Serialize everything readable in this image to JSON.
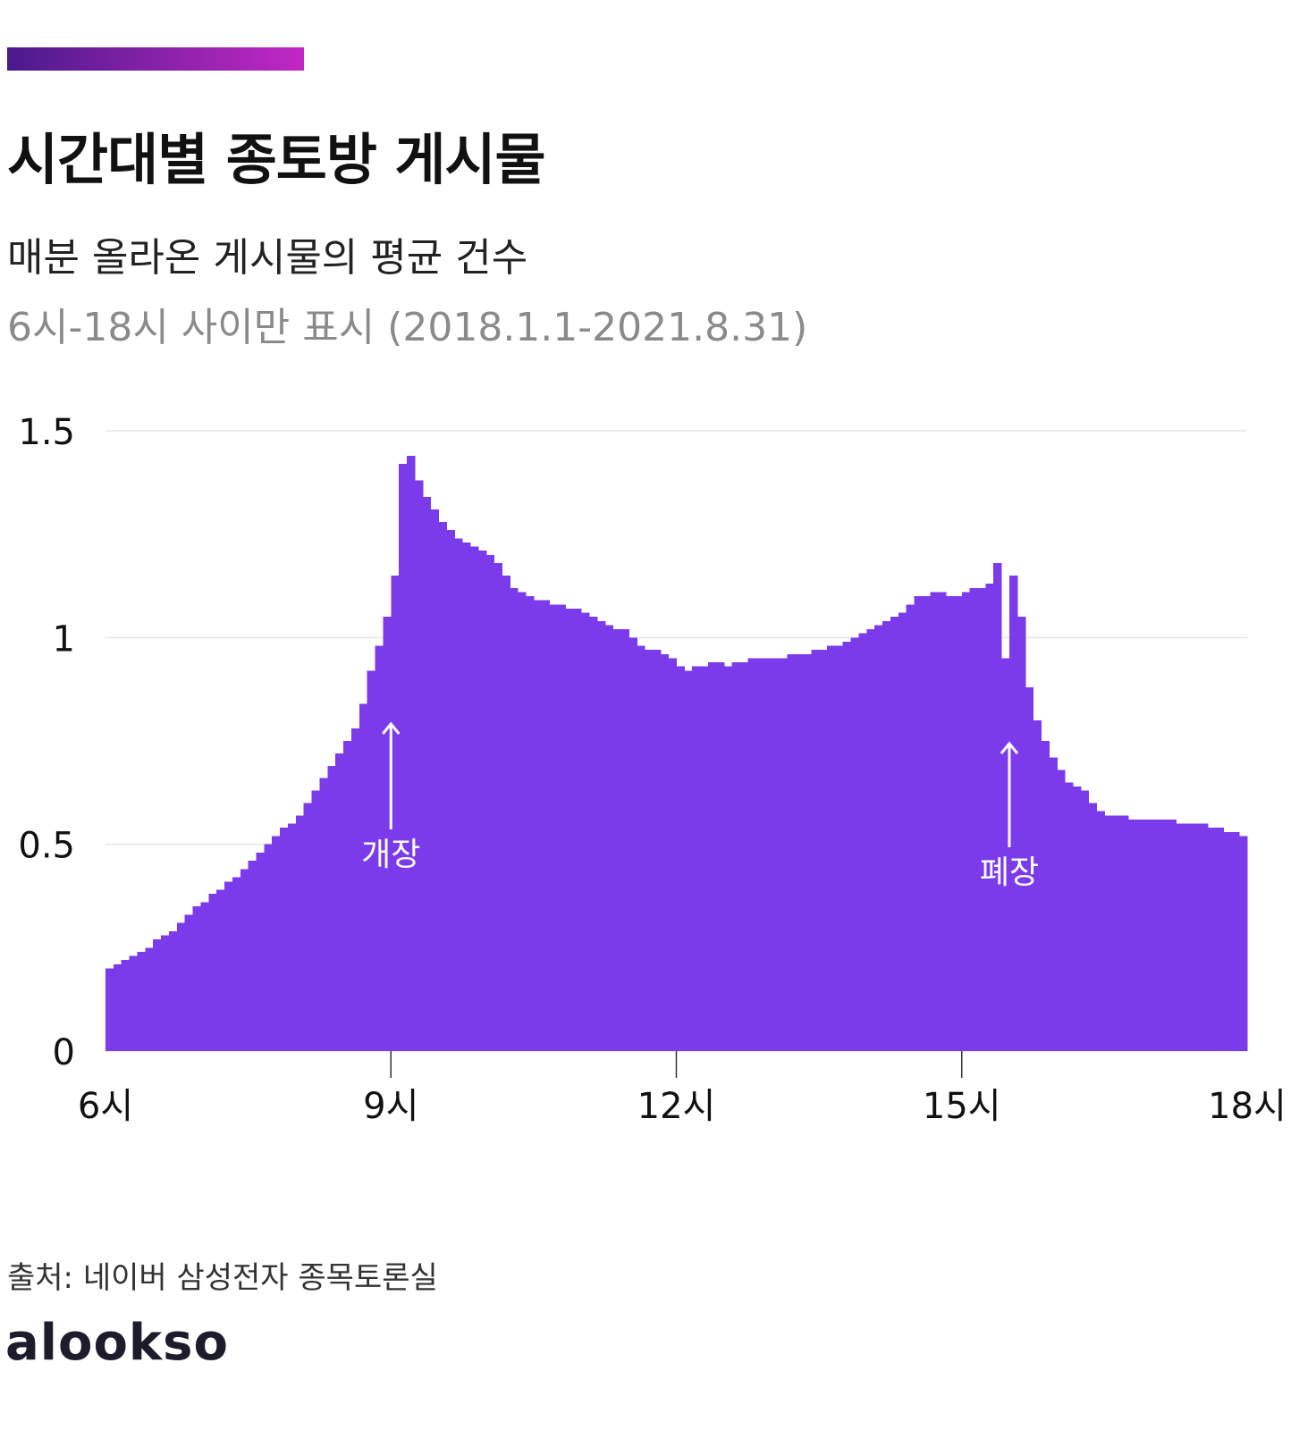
{
  "chart_data": {
    "type": "histogram",
    "title": "시간대별 종토방 게시물",
    "subtitle": "매분 올라온 게시물의 평균 건수",
    "note": "6시-18시 사이만 표시 (2018.1.1-2021.8.31)",
    "source": "출처: 네이버 삼성전자 종목토론실",
    "color": "#7b3beb",
    "grid": true,
    "xlim": [
      360,
      1080
    ],
    "xticks": [
      {
        "value": 360,
        "label": "6시"
      },
      {
        "value": 540,
        "label": "9시"
      },
      {
        "value": 720,
        "label": "12시"
      },
      {
        "value": 900,
        "label": "15시"
      },
      {
        "value": 1080,
        "label": "18시"
      }
    ],
    "ylim": [
      0,
      1.5
    ],
    "yticks": [
      0,
      0.5,
      1,
      1.5
    ],
    "annotations": [
      {
        "text": "개장",
        "x": 540
      },
      {
        "text": "폐장",
        "x": 930
      }
    ],
    "bins": [
      360,
      365,
      370,
      375,
      380,
      385,
      390,
      395,
      400,
      405,
      410,
      415,
      420,
      425,
      430,
      435,
      440,
      445,
      450,
      455,
      460,
      465,
      470,
      475,
      480,
      485,
      490,
      495,
      500,
      505,
      510,
      515,
      520,
      525,
      530,
      535,
      540,
      545,
      550,
      555,
      560,
      565,
      570,
      575,
      580,
      585,
      590,
      595,
      600,
      605,
      610,
      615,
      620,
      625,
      630,
      635,
      640,
      645,
      650,
      655,
      660,
      665,
      670,
      675,
      680,
      685,
      690,
      695,
      700,
      705,
      710,
      715,
      720,
      725,
      730,
      735,
      740,
      745,
      750,
      755,
      760,
      765,
      770,
      775,
      780,
      785,
      790,
      795,
      800,
      805,
      810,
      815,
      820,
      825,
      830,
      835,
      840,
      845,
      850,
      855,
      860,
      865,
      870,
      875,
      880,
      885,
      890,
      895,
      900,
      905,
      910,
      915,
      920,
      925,
      930,
      935,
      940,
      945,
      950,
      955,
      960,
      965,
      970,
      975,
      980,
      985,
      990,
      995,
      1000,
      1005,
      1010,
      1015,
      1020,
      1025,
      1030,
      1035,
      1040,
      1045,
      1050,
      1055,
      1060,
      1065,
      1070,
      1075,
      1080
    ],
    "values": [
      0.2,
      0.21,
      0.22,
      0.23,
      0.24,
      0.25,
      0.27,
      0.28,
      0.29,
      0.31,
      0.33,
      0.35,
      0.36,
      0.38,
      0.39,
      0.41,
      0.42,
      0.44,
      0.46,
      0.48,
      0.5,
      0.52,
      0.54,
      0.55,
      0.57,
      0.6,
      0.63,
      0.66,
      0.69,
      0.72,
      0.75,
      0.78,
      0.84,
      0.92,
      0.98,
      1.05,
      1.15,
      1.42,
      1.44,
      1.38,
      1.34,
      1.31,
      1.28,
      1.26,
      1.24,
      1.23,
      1.22,
      1.21,
      1.2,
      1.18,
      1.15,
      1.12,
      1.11,
      1.1,
      1.09,
      1.09,
      1.08,
      1.08,
      1.07,
      1.07,
      1.06,
      1.05,
      1.04,
      1.03,
      1.02,
      1.02,
      1.0,
      0.98,
      0.97,
      0.97,
      0.96,
      0.95,
      0.93,
      0.92,
      0.93,
      0.93,
      0.94,
      0.94,
      0.93,
      0.94,
      0.94,
      0.95,
      0.95,
      0.95,
      0.95,
      0.95,
      0.96,
      0.96,
      0.96,
      0.97,
      0.97,
      0.98,
      0.98,
      0.99,
      1.0,
      1.01,
      1.02,
      1.03,
      1.04,
      1.05,
      1.06,
      1.08,
      1.1,
      1.1,
      1.11,
      1.11,
      1.1,
      1.1,
      1.11,
      1.12,
      1.12,
      1.13,
      1.18,
      0.95,
      1.15,
      1.05,
      0.88,
      0.8,
      0.75,
      0.71,
      0.68,
      0.65,
      0.64,
      0.63,
      0.6,
      0.58,
      0.57,
      0.57,
      0.57,
      0.56,
      0.56,
      0.56,
      0.56,
      0.56,
      0.56,
      0.55,
      0.55,
      0.55,
      0.55,
      0.54,
      0.54,
      0.53,
      0.53,
      0.52
    ]
  },
  "logo": "alookso"
}
